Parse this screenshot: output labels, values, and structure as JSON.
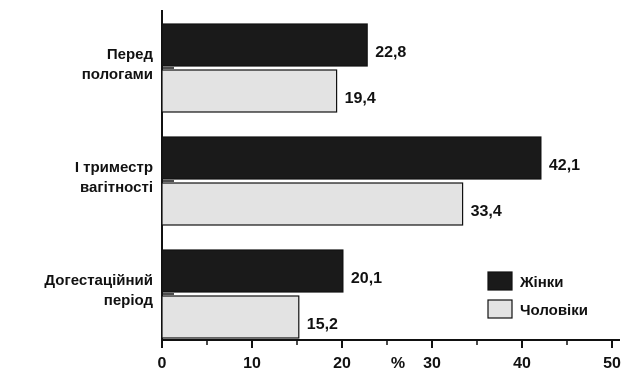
{
  "chart_data": {
    "type": "bar",
    "orientation": "horizontal",
    "categories": [
      [
        "Перед",
        "пологами"
      ],
      [
        "І триместр",
        "вагітності"
      ],
      [
        "Догестаційний",
        "період"
      ]
    ],
    "series": [
      {
        "name": "Жінки",
        "color": "#1a1a1a",
        "values": [
          22.8,
          42.1,
          20.1
        ],
        "labels": [
          "22,8",
          "42,1",
          "20,1"
        ]
      },
      {
        "name": "Чоловіки",
        "color": "#e3e3e3",
        "values": [
          19.4,
          33.4,
          15.2
        ],
        "labels": [
          "19,4",
          "33,4",
          "15,2"
        ]
      }
    ],
    "x_ticks": [
      0,
      10,
      20,
      30,
      40,
      50
    ],
    "x_tick_labels": [
      "0",
      "10",
      "20",
      "30",
      "40",
      "50"
    ],
    "xlim": [
      0,
      50
    ],
    "xlabel": "%",
    "legend_position": "bottom-right",
    "grid": false
  }
}
